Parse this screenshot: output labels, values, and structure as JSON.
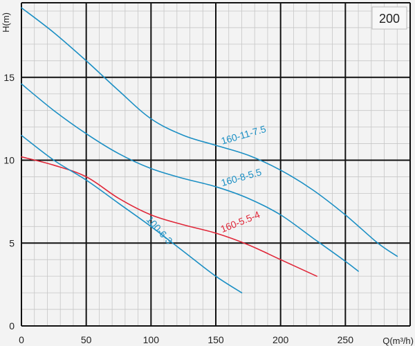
{
  "chart_data": {
    "type": "line",
    "xlabel": "Q(m³/h)",
    "ylabel": "H(m)",
    "badge": "200",
    "xlim": [
      0,
      300
    ],
    "ylim": [
      0,
      19.5
    ],
    "x_major_ticks": [
      0,
      50,
      100,
      150,
      200,
      250
    ],
    "y_major_ticks": [
      0,
      5,
      10,
      15
    ],
    "x_minor_step": 10,
    "y_minor_step": 1,
    "grid": true,
    "colors": {
      "blue": "#1b8fc4",
      "red": "#e02638",
      "major_grid": "#111111",
      "minor_grid": "#c6c6c6",
      "background": "#f3f3f3"
    },
    "series": [
      {
        "name": "160-11-7.5",
        "color": "#1b8fc4",
        "x": [
          0,
          25,
          50,
          75,
          100,
          125,
          150,
          175,
          200,
          225,
          250,
          275,
          290
        ],
        "y": [
          19.2,
          17.7,
          16.0,
          14.2,
          12.5,
          11.5,
          10.9,
          10.3,
          9.4,
          8.2,
          6.7,
          5.0,
          4.2
        ]
      },
      {
        "name": "160-8-5.5",
        "color": "#1b8fc4",
        "x": [
          0,
          25,
          50,
          75,
          100,
          125,
          150,
          175,
          200,
          225,
          250,
          260
        ],
        "y": [
          14.6,
          13.0,
          11.6,
          10.4,
          9.5,
          8.9,
          8.4,
          7.7,
          6.7,
          5.3,
          3.9,
          3.3
        ]
      },
      {
        "name": "160-5.5-4",
        "color": "#e02638",
        "x": [
          0,
          25,
          50,
          75,
          100,
          125,
          150,
          175,
          200,
          228
        ],
        "y": [
          10.2,
          9.7,
          9.0,
          7.7,
          6.7,
          6.1,
          5.6,
          4.9,
          4.0,
          3.0
        ]
      },
      {
        "name": "100-6-3",
        "color": "#1b8fc4",
        "x": [
          0,
          25,
          50,
          75,
          100,
          125,
          150,
          170
        ],
        "y": [
          11.5,
          10.0,
          8.8,
          7.4,
          6.0,
          4.5,
          3.0,
          2.0
        ]
      }
    ],
    "annotations": [
      {
        "text": "160-11-7.5",
        "series": 0,
        "x": 155,
        "angle": -16
      },
      {
        "text": "160-8-5.5",
        "series": 1,
        "x": 155,
        "angle": -16
      },
      {
        "text": "160-5.5-4",
        "series": 2,
        "x": 155,
        "angle": -22
      },
      {
        "text": "100-6-3",
        "series": 3,
        "x": 96,
        "angle": 48
      }
    ]
  }
}
